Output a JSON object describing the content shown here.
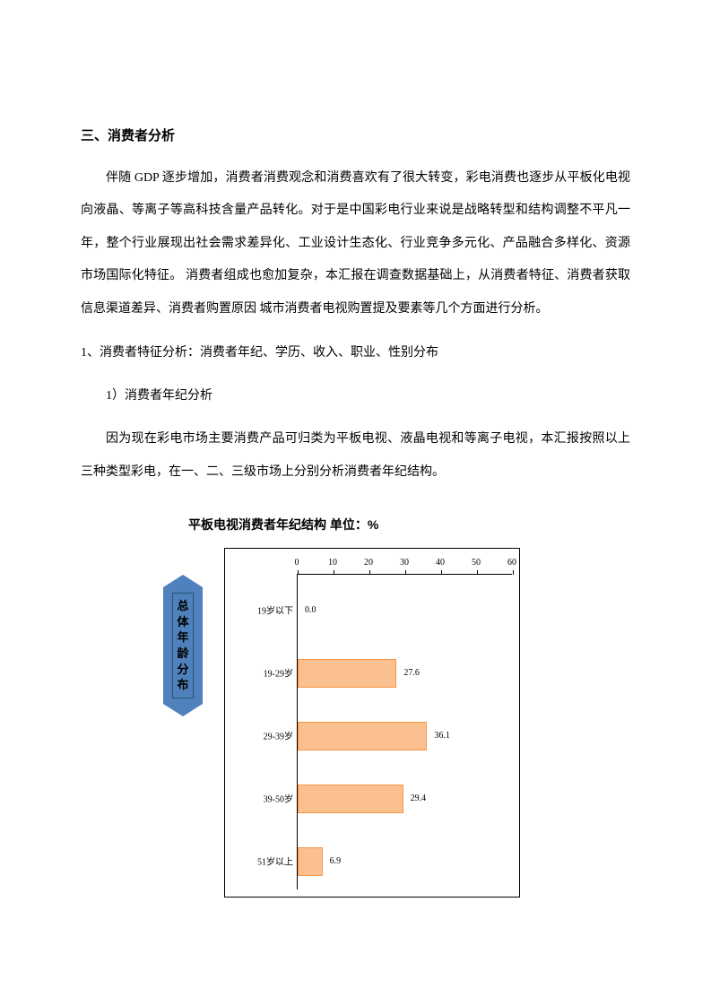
{
  "heading": "三、消费者分析",
  "para1": "伴随 GDP 逐步增加，消费者消费观念和消费喜欢有了很大转变，彩电消费也逐步从平板化电视向液晶、等离子等高科技含量产品转化。对于是中国彩电行业来说是战略转型和结构调整不平凡一年，整个行业展现出社会需求差异化、工业设计生态化、行业竞争多元化、产品融合多样化、资源市场国际化特征。 消费者组成也愈加复杂，本汇报在调查数据基础上，从消费者特征、消费者获取信息渠道差异、消费者购置原因 城市消费者电视购置提及要素等几个方面进行分析。",
  "sub1": "1、消费者特征分析：消费者年纪、学历、收入、职业、性别分布",
  "sub2": "1）消费者年纪分析",
  "para2": "因为现在彩电市场主要消费产品可归类为平板电视、液晶电视和等离子电视，本汇报按照以上三种类型彩电，在一、二、三级市场上分别分析消费者年纪结构。",
  "chart": {
    "title": "平板电视消费者年纪结构    单位：%",
    "type": "horizontal_bar",
    "x_ticks": [
      0,
      10,
      20,
      30,
      40,
      50,
      60
    ],
    "xlim": [
      0,
      60
    ],
    "bar_color": "#fac08f",
    "bar_border_color": "#f79646",
    "background_color": "#ffffff",
    "axis_color": "#000000",
    "label_fontsize": 10,
    "categories": [
      {
        "label": "19岁以下",
        "value": 0.0,
        "display": "0.0"
      },
      {
        "label": "19-29岁",
        "value": 27.6,
        "display": "27.6"
      },
      {
        "label": "29-39岁",
        "value": 36.1,
        "display": "36.1"
      },
      {
        "label": "39-50岁",
        "value": 29.4,
        "display": "29.4"
      },
      {
        "label": "51岁以上",
        "value": 6.9,
        "display": "6.9"
      }
    ],
    "side_label": "总体年龄分布",
    "side_label_bg": "#4f81bd",
    "side_label_border": "#2c4f74"
  }
}
